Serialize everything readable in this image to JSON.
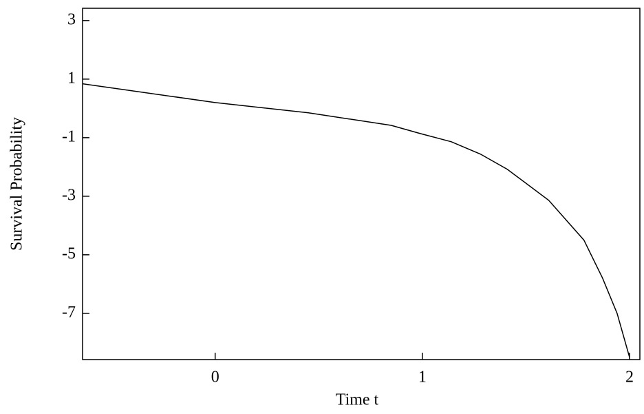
{
  "chart_data": {
    "type": "line",
    "xlabel": "Time t",
    "ylabel": "Survival Probability",
    "x": [
      -0.64,
      0,
      0.45,
      0.85,
      0.99,
      1.14,
      1.28,
      1.41,
      1.61,
      1.78,
      1.87,
      1.94,
      2.0
    ],
    "series": [
      {
        "name": "Survival Probability",
        "color": "#000000",
        "values": [
          0.84,
          0.2,
          -0.15,
          -0.58,
          -0.86,
          -1.14,
          -1.56,
          -2.08,
          -3.14,
          -4.5,
          -5.8,
          -7,
          -8.5
        ]
      }
    ],
    "xlim": [
      -0.64,
      2.05
    ],
    "ylim": [
      -8.58,
      3.42
    ],
    "xticks": [
      0,
      1,
      2
    ],
    "yticks": [
      3,
      1,
      -1,
      -3,
      -5,
      -7
    ]
  }
}
